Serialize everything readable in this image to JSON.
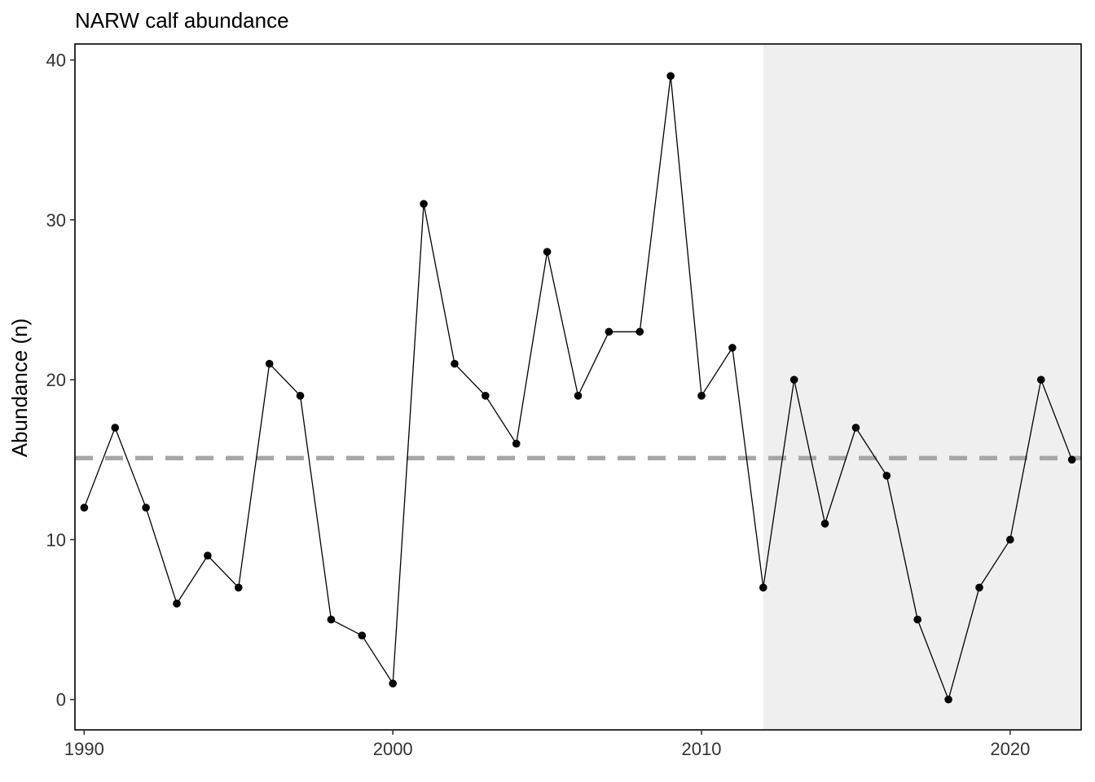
{
  "chart_data": {
    "type": "line",
    "title": "NARW calf abundance",
    "xlabel": "",
    "ylabel": "Abundance (n)",
    "xlim": [
      1989.7,
      2022.3
    ],
    "ylim": [
      -1.9,
      41
    ],
    "x_ticks": [
      1990,
      2000,
      2010,
      2020
    ],
    "y_ticks": [
      0,
      10,
      20,
      30,
      40
    ],
    "grid": false,
    "series": [
      {
        "x": [
          1990,
          1991,
          1992,
          1993,
          1994,
          1995,
          1996,
          1997,
          1998,
          1999,
          2000,
          2001,
          2002,
          2003,
          2004,
          2005,
          2006,
          2007,
          2008,
          2009,
          2010,
          2011,
          2012,
          2013,
          2014,
          2015,
          2016,
          2017,
          2018,
          2019,
          2020,
          2021,
          2022
        ],
        "y": [
          12,
          17,
          12,
          6,
          9,
          7,
          21,
          19,
          5,
          4,
          1,
          31,
          21,
          19,
          16,
          28,
          19,
          23,
          23,
          39,
          19,
          22,
          7,
          20,
          11,
          17,
          14,
          5,
          0,
          7,
          10,
          20,
          15
        ],
        "color": "#000000"
      }
    ],
    "reference_line": {
      "y": 15.1,
      "style": "dashed",
      "color": "#a6a6a6"
    },
    "shaded_region": {
      "x_start": 2012,
      "x_end": 2022.3,
      "color": "#efefef"
    }
  }
}
